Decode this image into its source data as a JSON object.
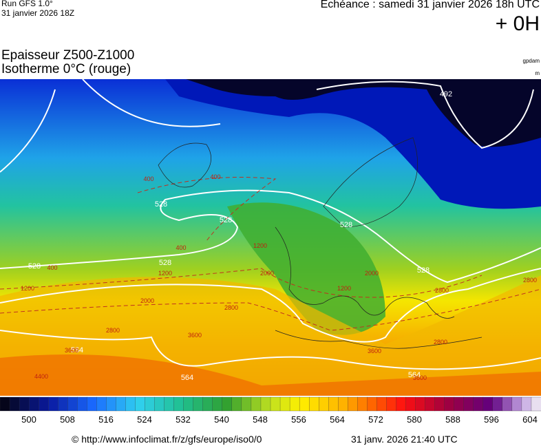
{
  "header": {
    "run": "Run GFS 1.0°",
    "run_date": "31 janvier 2026 18Z",
    "echeance": "Echéance : samedi 31 janvier 2026 18h UTC",
    "offset": "+ 0H",
    "title_line1": "Epaisseur Z500-Z1000",
    "title_line2": "Isotherme 0°C (rouge)",
    "unit1": "gpdam",
    "unit2": "m"
  },
  "contour_labels": [
    "492",
    "528",
    "528",
    "528",
    "528",
    "528",
    "528",
    "564",
    "564",
    "564",
    "400",
    "400",
    "400",
    "400",
    "1200",
    "1200",
    "1200",
    "2000",
    "2000",
    "2800",
    "2800",
    "2800",
    "3600",
    "3600",
    "4400",
    "1200",
    "2000",
    "2800",
    "3600",
    "2800",
    "3600"
  ],
  "colorbar": {
    "labels": [
      "500",
      "508",
      "516",
      "524",
      "532",
      "540",
      "548",
      "556",
      "564",
      "572",
      "580",
      "588",
      "596",
      "604"
    ]
  },
  "footer": {
    "url": "© http://www.infoclimat.fr/z/gfs/europe/iso0/0",
    "timestamp": "31 janv. 2026 21:40 UTC"
  }
}
